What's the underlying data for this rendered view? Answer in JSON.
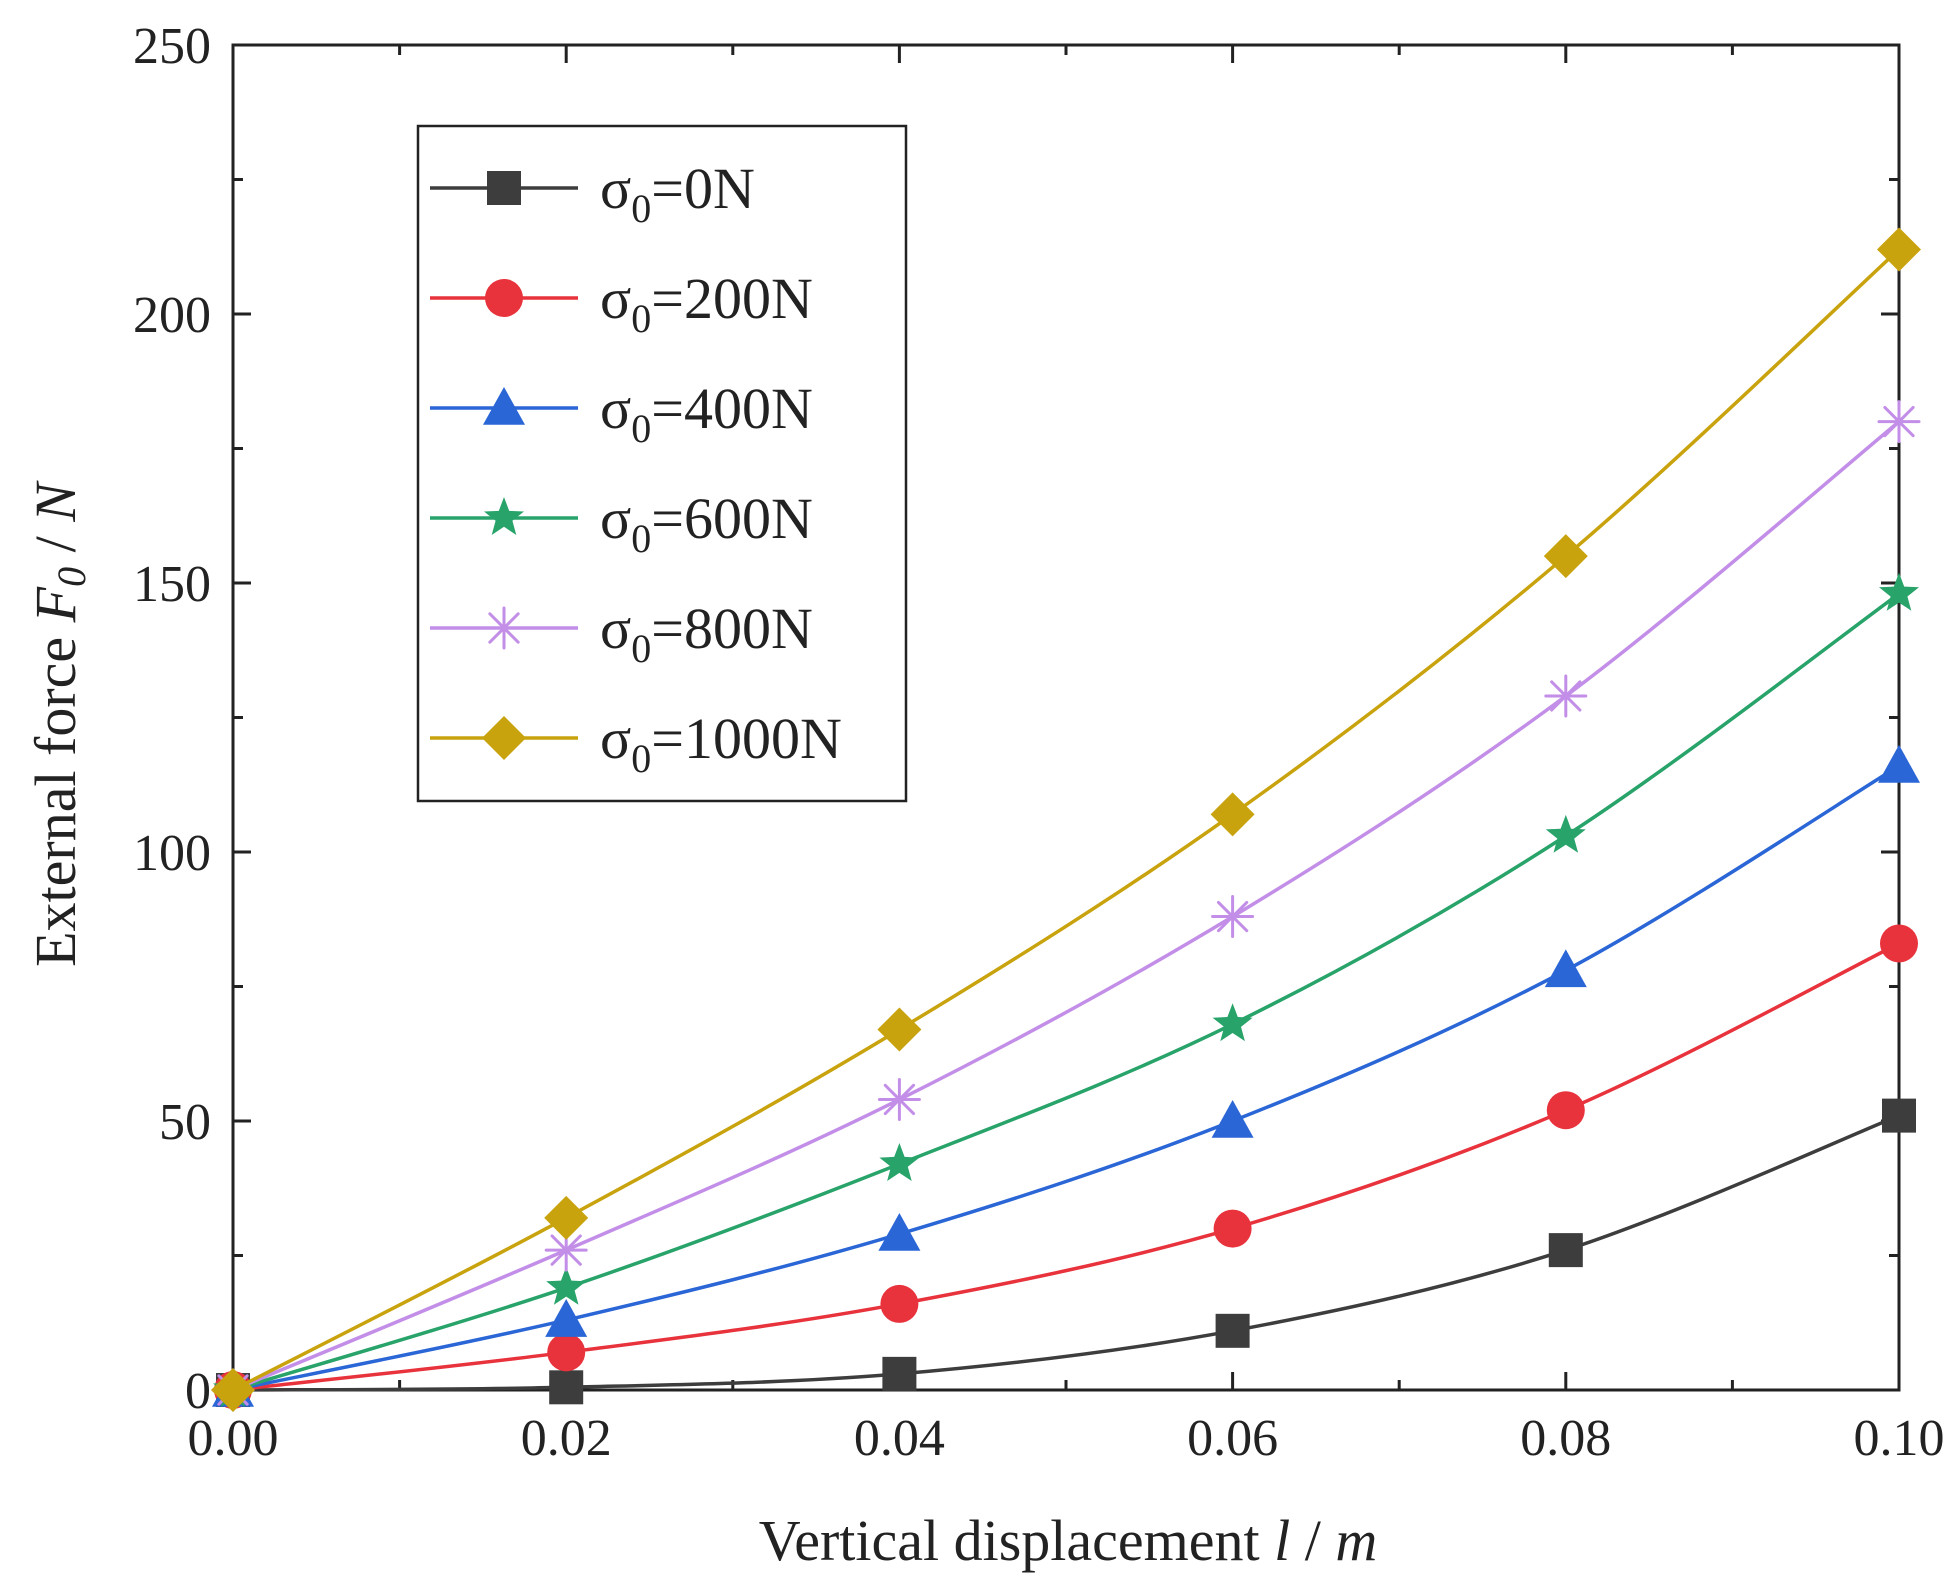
{
  "chart_data": {
    "type": "line",
    "title": "",
    "xlabel": "Vertical displacement",
    "xlabel_var": "l",
    "xlabel_unit": "m",
    "ylabel": "External force",
    "ylabel_var": "F",
    "ylabel_var_sub": "0",
    "ylabel_unit": "N",
    "xlim": [
      0,
      0.1
    ],
    "ylim": [
      0,
      250
    ],
    "xticks": [
      "0.00",
      "0.02",
      "0.04",
      "0.06",
      "0.08",
      "0.10"
    ],
    "yticks": [
      "0",
      "50",
      "100",
      "150",
      "200",
      "250"
    ],
    "x": [
      0,
      0.02,
      0.04,
      0.06,
      0.08,
      0.1
    ],
    "grid": false,
    "legend_position": "top-left",
    "series": [
      {
        "name": "σ0=0N",
        "symbol": "σ",
        "sub": "0",
        "value_label": "=0N",
        "color": "#3d3d3d",
        "marker": "square",
        "values": [
          0,
          0.5,
          3,
          11,
          26,
          51
        ]
      },
      {
        "name": "σ0=200N",
        "symbol": "σ",
        "sub": "0",
        "value_label": "=200N",
        "color": "#e8323c",
        "marker": "circle",
        "values": [
          0,
          7,
          16,
          30,
          52,
          83
        ]
      },
      {
        "name": "σ0=400N",
        "symbol": "σ",
        "sub": "0",
        "value_label": "=400N",
        "color": "#2a66d6",
        "marker": "triangle",
        "values": [
          0,
          13,
          29,
          50,
          78,
          116
        ]
      },
      {
        "name": "σ0=600N",
        "symbol": "σ",
        "sub": "0",
        "value_label": "=600N",
        "color": "#28a36a",
        "marker": "star",
        "values": [
          0,
          19,
          42,
          68,
          103,
          148
        ]
      },
      {
        "name": "σ0=800N",
        "symbol": "σ",
        "sub": "0",
        "value_label": "=800N",
        "color": "#c38ee8",
        "marker": "asterisk",
        "values": [
          0,
          26,
          54,
          88,
          129,
          180
        ]
      },
      {
        "name": "σ0=1000N",
        "symbol": "σ",
        "sub": "0",
        "value_label": "=1000N",
        "color": "#c9a30e",
        "marker": "diamond",
        "values": [
          0,
          32,
          67,
          107,
          155,
          212
        ]
      }
    ]
  }
}
